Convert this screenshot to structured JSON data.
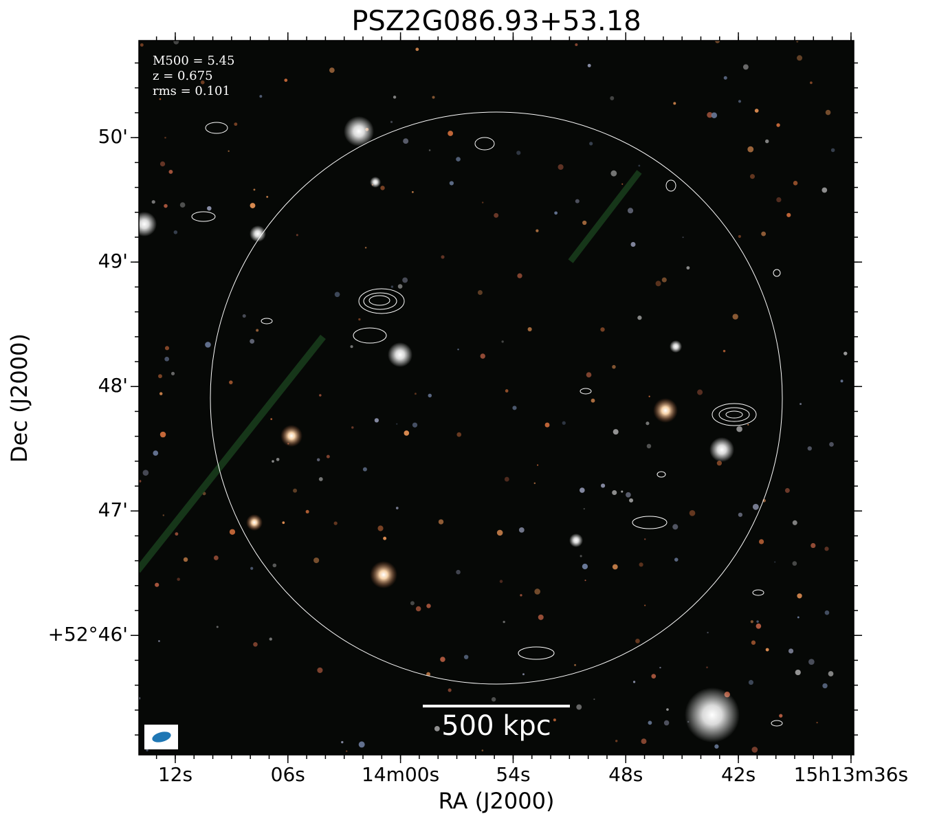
{
  "chart_data": {
    "type": "image",
    "title": "PSZ2G086.93+53.18",
    "xlabel": "RA (J2000)",
    "ylabel": "Dec (J2000)",
    "annotations": [
      "M500 = 5.45",
      "z = 0.675",
      "rms = 0.101"
    ],
    "scale_bar": "500 kpc",
    "xlim": [
      853.94,
      815.85
    ],
    "xticks": [
      {
        "value": 852,
        "label": "12s"
      },
      {
        "value": 846,
        "label": "06s"
      },
      {
        "value": 840,
        "label": "14m00s"
      },
      {
        "value": 834,
        "label": "54s"
      },
      {
        "value": 828,
        "label": "48s"
      },
      {
        "value": 822,
        "label": "42s"
      },
      {
        "value": 816,
        "label": "15h13m36s"
      }
    ],
    "ylim": [
      45.04,
      50.78
    ],
    "yticks": [
      {
        "value": 46,
        "label": "+52°46'"
      },
      {
        "value": 47,
        "label": "47'"
      },
      {
        "value": 48,
        "label": "48'"
      },
      {
        "value": 49,
        "label": "49'"
      },
      {
        "value": 50,
        "label": "50'"
      }
    ]
  }
}
